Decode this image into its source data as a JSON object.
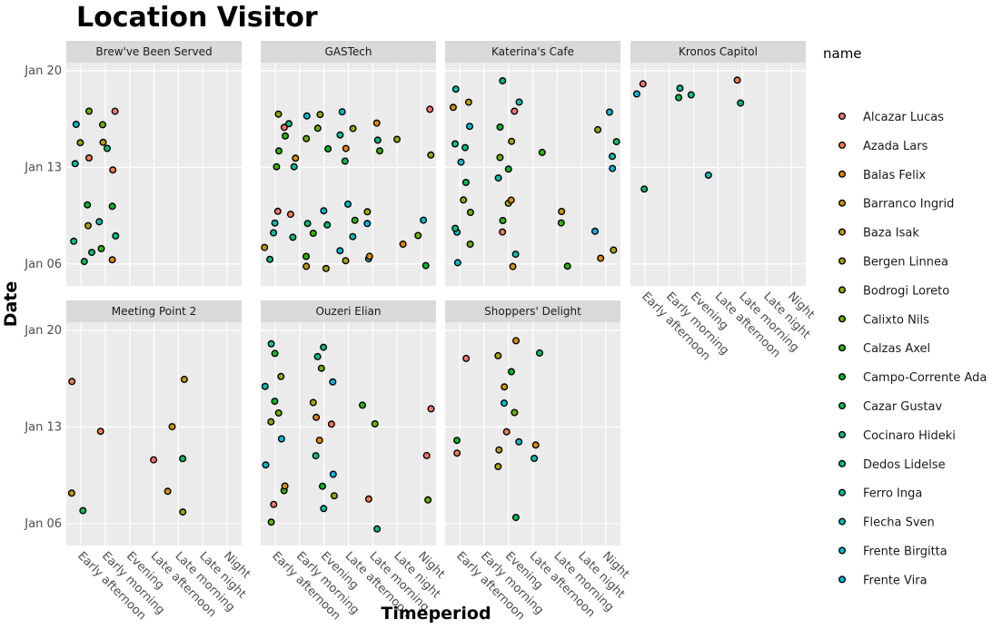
{
  "title": "Location Visitor",
  "chart_data": {
    "type": "scatter",
    "title": "Location Visitor",
    "xlabel": "Timeperiod",
    "ylabel": "Date",
    "x_categories": [
      "Early afternoon",
      "Early morning",
      "Evening",
      "Late afternoon",
      "Late morning",
      "Late night",
      "Night"
    ],
    "y_ticks": [
      "Jan 06",
      "Jan 13",
      "Jan 20"
    ],
    "y_range": [
      "2014-01-05",
      "2014-01-20"
    ],
    "grid": true,
    "jitter": true,
    "legend": {
      "title": "name",
      "position": "right",
      "entries": [
        {
          "name": "Alcazar Lucas",
          "color": "#f8766d"
        },
        {
          "name": "Azada Lars",
          "color": "#f17d50"
        },
        {
          "name": "Balas Felix",
          "color": "#e58700"
        },
        {
          "name": "Barranco Ingrid",
          "color": "#d49200"
        },
        {
          "name": "Baza Isak",
          "color": "#c09b00"
        },
        {
          "name": "Bergen Linnea",
          "color": "#a9a400"
        },
        {
          "name": "Bodrogi Loreto",
          "color": "#8fab00"
        },
        {
          "name": "Calixto Nils",
          "color": "#6bb100"
        },
        {
          "name": "Calzas Axel",
          "color": "#31b500"
        },
        {
          "name": "Campo-Corrente Ada",
          "color": "#00b928"
        },
        {
          "name": "Cazar Gustav",
          "color": "#00bc52"
        },
        {
          "name": "Cocinaro Hideki",
          "color": "#00be70"
        },
        {
          "name": "Dedos Lidelse",
          "color": "#00c08b"
        },
        {
          "name": "Ferro Inga",
          "color": "#00c1a3"
        },
        {
          "name": "Flecha Sven",
          "color": "#00c0b8"
        },
        {
          "name": "Frente Birgitta",
          "color": "#00bdcc"
        },
        {
          "name": "Frente Vira",
          "color": "#00b9e3"
        }
      ]
    },
    "facets": [
      {
        "name": "Brew've Been Served",
        "points": [
          {
            "x": "Early afternoon",
            "date": "2014-01-06"
          },
          {
            "x": "Early afternoon",
            "date": "2014-01-07"
          },
          {
            "x": "Early afternoon",
            "date": "2014-01-08"
          },
          {
            "x": "Early afternoon",
            "date": "2014-01-09"
          },
          {
            "x": "Early afternoon",
            "date": "2014-01-10"
          },
          {
            "x": "Early afternoon",
            "date": "2014-01-13"
          },
          {
            "x": "Early afternoon",
            "date": "2014-01-14"
          },
          {
            "x": "Early afternoon",
            "date": "2014-01-15"
          },
          {
            "x": "Early afternoon",
            "date": "2014-01-16"
          },
          {
            "x": "Early afternoon",
            "date": "2014-01-17"
          },
          {
            "x": "Early morning",
            "date": "2014-01-06"
          },
          {
            "x": "Early morning",
            "date": "2014-01-07"
          },
          {
            "x": "Early morning",
            "date": "2014-01-08"
          },
          {
            "x": "Early morning",
            "date": "2014-01-09"
          },
          {
            "x": "Early morning",
            "date": "2014-01-10"
          },
          {
            "x": "Early morning",
            "date": "2014-01-13"
          },
          {
            "x": "Early morning",
            "date": "2014-01-14"
          },
          {
            "x": "Early morning",
            "date": "2014-01-15"
          },
          {
            "x": "Early morning",
            "date": "2014-01-16"
          },
          {
            "x": "Early morning",
            "date": "2014-01-17"
          }
        ]
      },
      {
        "name": "GASTech",
        "points": [
          {
            "x": "Early afternoon",
            "date": "2014-01-06"
          },
          {
            "x": "Early afternoon",
            "date": "2014-01-07"
          },
          {
            "x": "Early afternoon",
            "date": "2014-01-08"
          },
          {
            "x": "Early afternoon",
            "date": "2014-01-09"
          },
          {
            "x": "Early afternoon",
            "date": "2014-01-10"
          },
          {
            "x": "Early afternoon",
            "date": "2014-01-13"
          },
          {
            "x": "Early afternoon",
            "date": "2014-01-14"
          },
          {
            "x": "Early afternoon",
            "date": "2014-01-15"
          },
          {
            "x": "Early afternoon",
            "date": "2014-01-16"
          },
          {
            "x": "Early afternoon",
            "date": "2014-01-17"
          },
          {
            "x": "Early morning",
            "date": "2014-01-06"
          },
          {
            "x": "Early morning",
            "date": "2014-01-07"
          },
          {
            "x": "Early morning",
            "date": "2014-01-08"
          },
          {
            "x": "Early morning",
            "date": "2014-01-09"
          },
          {
            "x": "Early morning",
            "date": "2014-01-10"
          },
          {
            "x": "Early morning",
            "date": "2014-01-13"
          },
          {
            "x": "Early morning",
            "date": "2014-01-14"
          },
          {
            "x": "Early morning",
            "date": "2014-01-15"
          },
          {
            "x": "Early morning",
            "date": "2014-01-16"
          },
          {
            "x": "Early morning",
            "date": "2014-01-17"
          },
          {
            "x": "Evening",
            "date": "2014-01-06"
          },
          {
            "x": "Evening",
            "date": "2014-01-08"
          },
          {
            "x": "Evening",
            "date": "2014-01-09"
          },
          {
            "x": "Evening",
            "date": "2014-01-10"
          },
          {
            "x": "Evening",
            "date": "2014-01-14"
          },
          {
            "x": "Evening",
            "date": "2014-01-16"
          },
          {
            "x": "Evening",
            "date": "2014-01-17"
          },
          {
            "x": "Late afternoon",
            "date": "2014-01-06"
          },
          {
            "x": "Late afternoon",
            "date": "2014-01-07"
          },
          {
            "x": "Late afternoon",
            "date": "2014-01-08"
          },
          {
            "x": "Late afternoon",
            "date": "2014-01-09"
          },
          {
            "x": "Late afternoon",
            "date": "2014-01-10"
          },
          {
            "x": "Late afternoon",
            "date": "2014-01-13"
          },
          {
            "x": "Late afternoon",
            "date": "2014-01-14"
          },
          {
            "x": "Late afternoon",
            "date": "2014-01-15"
          },
          {
            "x": "Late afternoon",
            "date": "2014-01-16"
          },
          {
            "x": "Late afternoon",
            "date": "2014-01-17"
          },
          {
            "x": "Late morning",
            "date": "2014-01-06"
          },
          {
            "x": "Late morning",
            "date": "2014-01-07"
          },
          {
            "x": "Late morning",
            "date": "2014-01-09"
          },
          {
            "x": "Late morning",
            "date": "2014-01-10"
          },
          {
            "x": "Late morning",
            "date": "2014-01-14"
          },
          {
            "x": "Late morning",
            "date": "2014-01-15"
          },
          {
            "x": "Late morning",
            "date": "2014-01-16"
          },
          {
            "x": "Late night",
            "date": "2014-01-07"
          },
          {
            "x": "Late night",
            "date": "2014-01-15"
          },
          {
            "x": "Night",
            "date": "2014-01-06"
          },
          {
            "x": "Night",
            "date": "2014-01-08"
          },
          {
            "x": "Night",
            "date": "2014-01-09"
          },
          {
            "x": "Night",
            "date": "2014-01-14"
          },
          {
            "x": "Night",
            "date": "2014-01-17"
          }
        ]
      },
      {
        "name": "Katerina's Cafe",
        "points": [
          {
            "x": "Early afternoon",
            "date": "2014-01-06"
          },
          {
            "x": "Early afternoon",
            "date": "2014-01-07"
          },
          {
            "x": "Early afternoon",
            "date": "2014-01-08"
          },
          {
            "x": "Early afternoon",
            "date": "2014-01-09"
          },
          {
            "x": "Early afternoon",
            "date": "2014-01-10"
          },
          {
            "x": "Early afternoon",
            "date": "2014-01-11"
          },
          {
            "x": "Early afternoon",
            "date": "2014-01-12"
          },
          {
            "x": "Early afternoon",
            "date": "2014-01-13"
          },
          {
            "x": "Early afternoon",
            "date": "2014-01-14"
          },
          {
            "x": "Early afternoon",
            "date": "2014-01-15"
          },
          {
            "x": "Early afternoon",
            "date": "2014-01-16"
          },
          {
            "x": "Early afternoon",
            "date": "2014-01-17"
          },
          {
            "x": "Early afternoon",
            "date": "2014-01-18"
          },
          {
            "x": "Early afternoon",
            "date": "2014-01-19"
          },
          {
            "x": "Evening",
            "date": "2014-01-06"
          },
          {
            "x": "Evening",
            "date": "2014-01-07"
          },
          {
            "x": "Evening",
            "date": "2014-01-08"
          },
          {
            "x": "Evening",
            "date": "2014-01-09"
          },
          {
            "x": "Evening",
            "date": "2014-01-10"
          },
          {
            "x": "Evening",
            "date": "2014-01-11"
          },
          {
            "x": "Evening",
            "date": "2014-01-12"
          },
          {
            "x": "Evening",
            "date": "2014-01-13"
          },
          {
            "x": "Evening",
            "date": "2014-01-14"
          },
          {
            "x": "Evening",
            "date": "2014-01-15"
          },
          {
            "x": "Evening",
            "date": "2014-01-16"
          },
          {
            "x": "Evening",
            "date": "2014-01-17"
          },
          {
            "x": "Evening",
            "date": "2014-01-18"
          },
          {
            "x": "Evening",
            "date": "2014-01-19"
          },
          {
            "x": "Late afternoon",
            "date": "2014-01-14"
          },
          {
            "x": "Late morning",
            "date": "2014-01-06"
          },
          {
            "x": "Late morning",
            "date": "2014-01-09"
          },
          {
            "x": "Late morning",
            "date": "2014-01-10"
          },
          {
            "x": "Night",
            "date": "2014-01-06"
          },
          {
            "x": "Night",
            "date": "2014-01-07"
          },
          {
            "x": "Night",
            "date": "2014-01-08"
          },
          {
            "x": "Night",
            "date": "2014-01-13"
          },
          {
            "x": "Night",
            "date": "2014-01-14"
          },
          {
            "x": "Night",
            "date": "2014-01-15"
          },
          {
            "x": "Night",
            "date": "2014-01-16"
          },
          {
            "x": "Night",
            "date": "2014-01-17"
          }
        ]
      },
      {
        "name": "Kronos Capitol",
        "points": [
          {
            "x": "Early afternoon",
            "date": "2014-01-11"
          },
          {
            "x": "Early afternoon",
            "date": "2014-01-18"
          },
          {
            "x": "Early afternoon",
            "date": "2014-01-19"
          },
          {
            "x": "Early morning",
            "date": "2014-01-18"
          },
          {
            "x": "Early morning",
            "date": "2014-01-19"
          },
          {
            "x": "Evening",
            "date": "2014-01-18"
          },
          {
            "x": "Late afternoon",
            "date": "2014-01-12"
          },
          {
            "x": "Late morning",
            "date": "2014-01-18"
          },
          {
            "x": "Late morning",
            "date": "2014-01-19"
          }
        ]
      },
      {
        "name": "Meeting Point 2",
        "points": [
          {
            "x": "Early afternoon",
            "date": "2014-01-07"
          },
          {
            "x": "Early afternoon",
            "date": "2014-01-08"
          },
          {
            "x": "Early afternoon",
            "date": "2014-01-16"
          },
          {
            "x": "Early morning",
            "date": "2014-01-13"
          },
          {
            "x": "Late afternoon",
            "date": "2014-01-11"
          },
          {
            "x": "Late morning",
            "date": "2014-01-07"
          },
          {
            "x": "Late morning",
            "date": "2014-01-08"
          },
          {
            "x": "Late morning",
            "date": "2014-01-11"
          },
          {
            "x": "Late morning",
            "date": "2014-01-13"
          },
          {
            "x": "Late morning",
            "date": "2014-01-16"
          }
        ]
      },
      {
        "name": "Ouzeri Elian",
        "points": [
          {
            "x": "Early afternoon",
            "date": "2014-01-06"
          },
          {
            "x": "Early afternoon",
            "date": "2014-01-07"
          },
          {
            "x": "Early afternoon",
            "date": "2014-01-08"
          },
          {
            "x": "Early afternoon",
            "date": "2014-01-09"
          },
          {
            "x": "Early afternoon",
            "date": "2014-01-10"
          },
          {
            "x": "Early afternoon",
            "date": "2014-01-12"
          },
          {
            "x": "Early afternoon",
            "date": "2014-01-13"
          },
          {
            "x": "Early afternoon",
            "date": "2014-01-14"
          },
          {
            "x": "Early afternoon",
            "date": "2014-01-15"
          },
          {
            "x": "Early afternoon",
            "date": "2014-01-16"
          },
          {
            "x": "Early afternoon",
            "date": "2014-01-17"
          },
          {
            "x": "Early afternoon",
            "date": "2014-01-18"
          },
          {
            "x": "Early afternoon",
            "date": "2014-01-19"
          },
          {
            "x": "Evening",
            "date": "2014-01-07"
          },
          {
            "x": "Evening",
            "date": "2014-01-08"
          },
          {
            "x": "Evening",
            "date": "2014-01-09"
          },
          {
            "x": "Evening",
            "date": "2014-01-10"
          },
          {
            "x": "Evening",
            "date": "2014-01-11"
          },
          {
            "x": "Evening",
            "date": "2014-01-12"
          },
          {
            "x": "Evening",
            "date": "2014-01-13"
          },
          {
            "x": "Evening",
            "date": "2014-01-14"
          },
          {
            "x": "Evening",
            "date": "2014-01-15"
          },
          {
            "x": "Evening",
            "date": "2014-01-16"
          },
          {
            "x": "Evening",
            "date": "2014-01-17"
          },
          {
            "x": "Evening",
            "date": "2014-01-18"
          },
          {
            "x": "Evening",
            "date": "2014-01-19"
          },
          {
            "x": "Late morning",
            "date": "2014-01-06"
          },
          {
            "x": "Late morning",
            "date": "2014-01-08"
          },
          {
            "x": "Late morning",
            "date": "2014-01-13"
          },
          {
            "x": "Late morning",
            "date": "2014-01-15"
          },
          {
            "x": "Night",
            "date": "2014-01-08"
          },
          {
            "x": "Night",
            "date": "2014-01-11"
          },
          {
            "x": "Night",
            "date": "2014-01-14"
          }
        ]
      },
      {
        "name": "Shoppers' Delight",
        "points": [
          {
            "x": "Early afternoon",
            "date": "2014-01-11"
          },
          {
            "x": "Early afternoon",
            "date": "2014-01-12"
          },
          {
            "x": "Early afternoon",
            "date": "2014-01-18"
          },
          {
            "x": "Evening",
            "date": "2014-01-06"
          },
          {
            "x": "Evening",
            "date": "2014-01-10"
          },
          {
            "x": "Evening",
            "date": "2014-01-11"
          },
          {
            "x": "Evening",
            "date": "2014-01-12"
          },
          {
            "x": "Evening",
            "date": "2014-01-13"
          },
          {
            "x": "Evening",
            "date": "2014-01-14"
          },
          {
            "x": "Evening",
            "date": "2014-01-15"
          },
          {
            "x": "Evening",
            "date": "2014-01-16"
          },
          {
            "x": "Evening",
            "date": "2014-01-17"
          },
          {
            "x": "Evening",
            "date": "2014-01-18"
          },
          {
            "x": "Evening",
            "date": "2014-01-19"
          },
          {
            "x": "Late afternoon",
            "date": "2014-01-11"
          },
          {
            "x": "Late afternoon",
            "date": "2014-01-12"
          },
          {
            "x": "Late afternoon",
            "date": "2014-01-18"
          }
        ]
      }
    ]
  }
}
